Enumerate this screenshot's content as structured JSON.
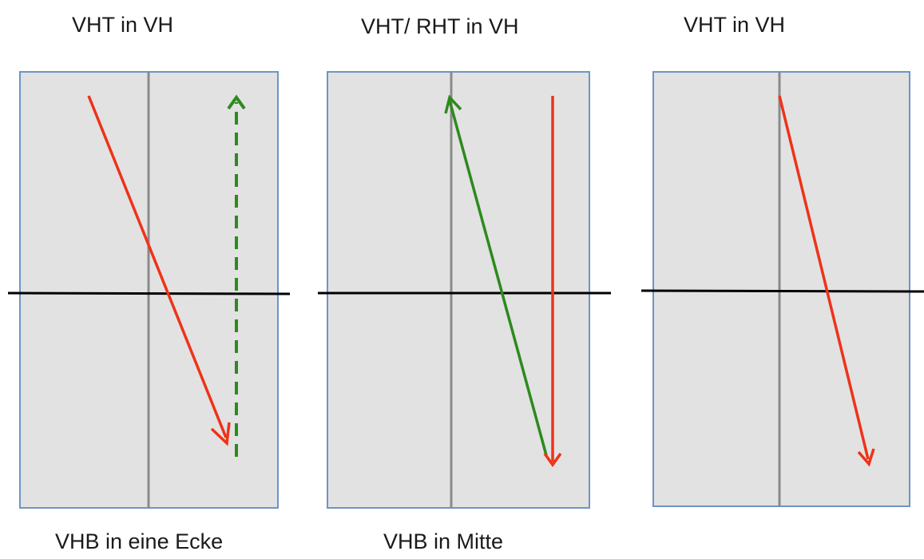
{
  "top_labels": [
    "VHT in VH",
    "VHT/ RHT in VH",
    "VHT in VH"
  ],
  "bottom_labels": [
    "VHB in eine Ecke",
    "VHB in Mitte",
    ""
  ],
  "colors": {
    "panel_fill": "#e2e2e2",
    "panel_border": "#6d95c6",
    "center_line": "#8a8a8a",
    "horizontal_line": "#000000",
    "red_arrow": "#ee3318",
    "green_arrow": "#2d8a1e"
  }
}
